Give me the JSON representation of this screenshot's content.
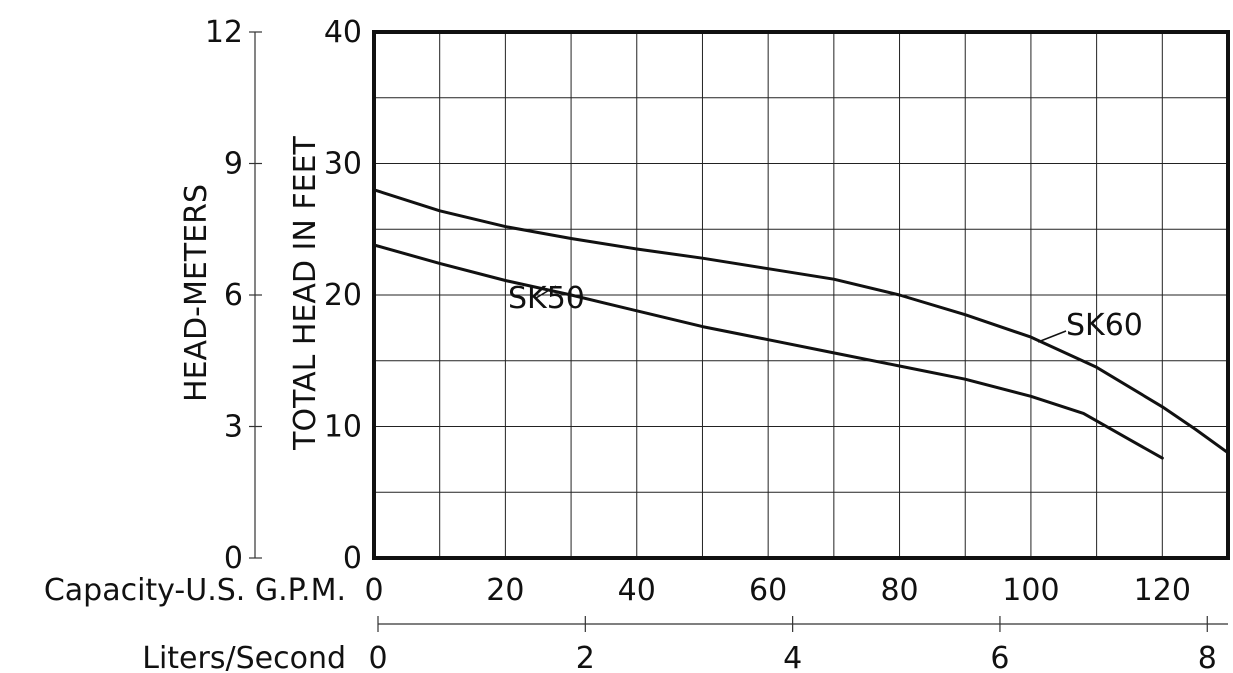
{
  "chart_data": {
    "type": "line",
    "title": "",
    "axes": {
      "x_primary": {
        "label": "Capacity-U.S. G.P.M.",
        "range": [
          0,
          130
        ],
        "ticks": [
          0,
          20,
          40,
          60,
          80,
          100,
          120
        ],
        "tick_labels": [
          "0",
          "20",
          "40",
          "60",
          "80",
          "100",
          "120"
        ]
      },
      "x_secondary": {
        "label": "Liters/Second",
        "range": [
          0,
          8.2
        ],
        "ticks": [
          0,
          2,
          4,
          6,
          8
        ],
        "tick_labels": [
          "0",
          "2",
          "4",
          "6",
          "8"
        ]
      },
      "y_primary": {
        "label": "TOTAL HEAD IN FEET",
        "range": [
          0,
          40
        ],
        "ticks": [
          0,
          10,
          20,
          30,
          40
        ],
        "tick_labels": [
          "0",
          "10",
          "20",
          "30",
          "40"
        ]
      },
      "y_secondary": {
        "label": "HEAD-METERS",
        "range": [
          0,
          12
        ],
        "ticks": [
          0,
          3,
          6,
          9,
          12
        ],
        "tick_labels": [
          "0",
          "3",
          "6",
          "9",
          "12"
        ]
      }
    },
    "grid": true,
    "grid_step_x": 10,
    "grid_step_y": 5,
    "legend": "inline",
    "series": [
      {
        "name": "SK60",
        "x": [
          0,
          10,
          20,
          30,
          40,
          50,
          60,
          70,
          80,
          90,
          100,
          110,
          120,
          125,
          130
        ],
        "y": [
          28,
          26.4,
          25.2,
          24.3,
          23.5,
          22.8,
          22,
          21.2,
          20,
          18.5,
          16.8,
          14.5,
          11.5,
          9.8,
          8
        ]
      },
      {
        "name": "SK50",
        "x": [
          0,
          10,
          20,
          30,
          40,
          50,
          60,
          70,
          80,
          90,
          100,
          108,
          115,
          120
        ],
        "y": [
          23.8,
          22.4,
          21.1,
          20,
          18.8,
          17.6,
          16.6,
          15.6,
          14.6,
          13.6,
          12.3,
          11,
          9,
          7.6
        ]
      }
    ]
  }
}
